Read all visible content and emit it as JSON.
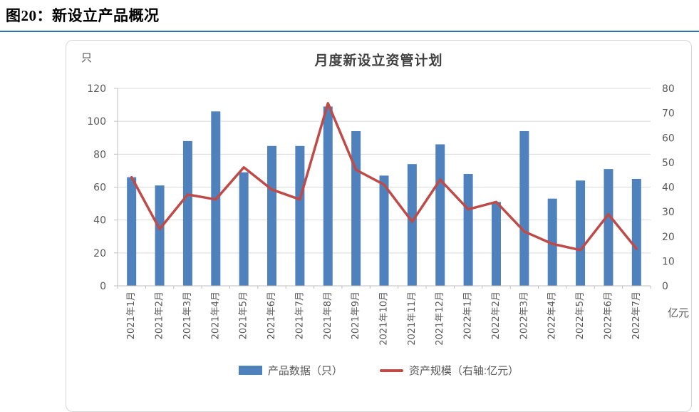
{
  "page": {
    "title": "图20：新设立产品概况"
  },
  "chart_data": {
    "type": "bar",
    "title": "月度新设立资管计划",
    "categories": [
      "2021年1月",
      "2021年2月",
      "2021年3月",
      "2021年4月",
      "2021年5月",
      "2021年6月",
      "2021年7月",
      "2021年8月",
      "2021年9月",
      "2021年10月",
      "2021年11月",
      "2021年12月",
      "2022年1月",
      "2022年2月",
      "2022年3月",
      "2022年4月",
      "2022年5月",
      "2022年6月",
      "2022年7月"
    ],
    "series": [
      {
        "name": "产品数据（只）",
        "type": "bar",
        "axis": "left",
        "color": "#4f81bd",
        "values": [
          66,
          61,
          88,
          106,
          69,
          85,
          85,
          109,
          94,
          67,
          74,
          86,
          68,
          51,
          94,
          53,
          64,
          71,
          65
        ]
      },
      {
        "name": "资产规模（右轴:亿元）",
        "type": "line",
        "axis": "right",
        "color": "#be4b48",
        "values": [
          44,
          23,
          37,
          35,
          48,
          39,
          35,
          74,
          47,
          41,
          26,
          43,
          31,
          34,
          22,
          17,
          14.5,
          29,
          15
        ]
      }
    ],
    "left_axis": {
      "unit": "只",
      "min": 0,
      "max": 120,
      "step": 20,
      "ticks": [
        0,
        20,
        40,
        60,
        80,
        100,
        120
      ]
    },
    "right_axis": {
      "unit": "亿元",
      "min": 0,
      "max": 80,
      "step": 10,
      "ticks": [
        0,
        10,
        20,
        30,
        40,
        50,
        60,
        70,
        80
      ]
    },
    "grid": true,
    "legend_position": "bottom",
    "grid_color": "#d9d9d9",
    "axis_color": "#bfbfbf",
    "divider_color": "#2e74b5"
  }
}
